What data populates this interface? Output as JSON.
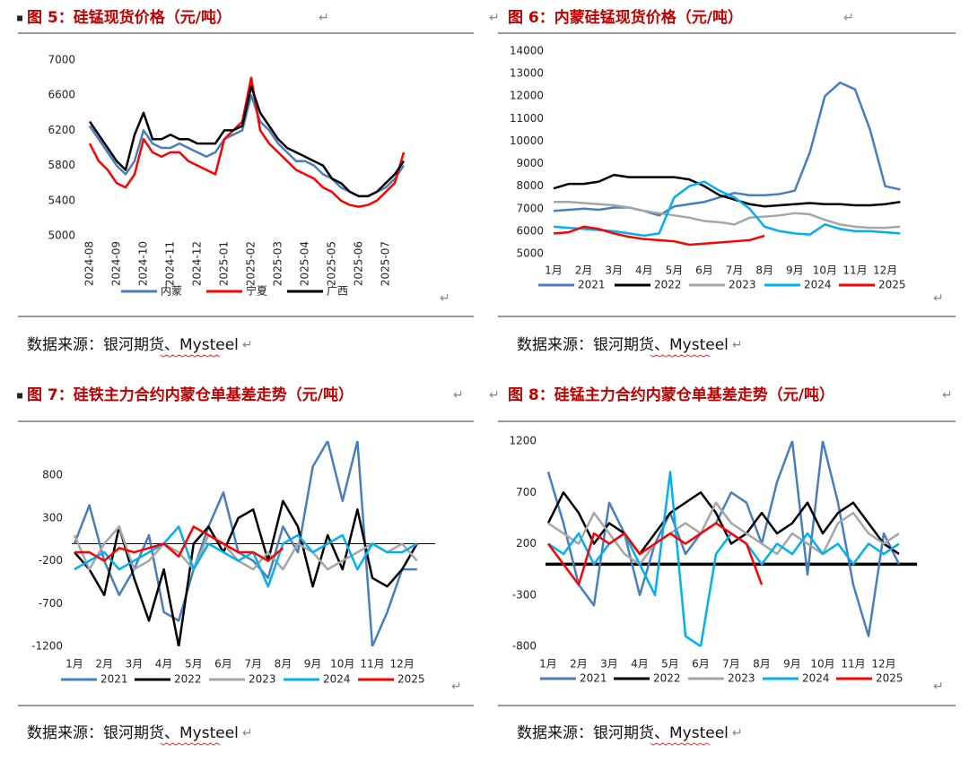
{
  "paragraph_mark": "↵",
  "bullet": "▪",
  "chart_data": [
    {
      "type": "line",
      "title": "图 5：硅锰现货价格（元/吨）",
      "source": "数据来源：银河期货、Mysteel",
      "categories": [
        "2024-08",
        null,
        null,
        "2024-09",
        null,
        null,
        "2024-10",
        null,
        null,
        "2024-11",
        null,
        null,
        "2024-12",
        null,
        null,
        "2025-01",
        null,
        null,
        "2025-02",
        null,
        null,
        "2025-03",
        null,
        null,
        "2025-04",
        null,
        null,
        "2025-05",
        null,
        null,
        "2025-06",
        null,
        null,
        "2025-07",
        null,
        null
      ],
      "ylim": [
        5000,
        7000
      ],
      "yticks": [
        5000,
        5400,
        5800,
        6200,
        6600,
        7000
      ],
      "legend": "bottom",
      "grid": false,
      "series": [
        {
          "name": "内蒙",
          "color": "#4a7ebb",
          "values": [
            6250,
            6100,
            5950,
            5800,
            5700,
            5850,
            6200,
            6050,
            6000,
            6000,
            6050,
            6000,
            5950,
            5900,
            5950,
            6100,
            6150,
            6200,
            6600,
            6300,
            6200,
            6050,
            5950,
            5850,
            5850,
            5800,
            5700,
            5650,
            5550,
            5500,
            5450,
            5450,
            5500,
            5550,
            5650,
            5800
          ]
        },
        {
          "name": "宁夏",
          "color": "#ff0000",
          "values": [
            6050,
            5850,
            5750,
            5600,
            5550,
            5700,
            6100,
            5950,
            5900,
            5950,
            5950,
            5850,
            5800,
            5750,
            5700,
            6100,
            6200,
            6300,
            6800,
            6200,
            6050,
            5950,
            5850,
            5750,
            5700,
            5650,
            5550,
            5500,
            5400,
            5350,
            5330,
            5350,
            5400,
            5500,
            5600,
            5950
          ]
        },
        {
          "name": "广西",
          "color": "#000000",
          "values": [
            6300,
            6150,
            6000,
            5850,
            5750,
            6150,
            6400,
            6100,
            6100,
            6150,
            6100,
            6100,
            6050,
            6050,
            6050,
            6200,
            6200,
            6250,
            6700,
            6400,
            6250,
            6100,
            6000,
            5950,
            5900,
            5850,
            5800,
            5650,
            5600,
            5500,
            5450,
            5450,
            5500,
            5600,
            5700,
            5850
          ]
        }
      ]
    },
    {
      "type": "line",
      "title": "图 6：内蒙硅锰现货价格（元/吨）",
      "source": "数据来源：银河期货、Mysteel",
      "categories": [
        "1月",
        null,
        "2月",
        null,
        "3月",
        null,
        "4月",
        null,
        "5月",
        null,
        "6月",
        null,
        "7月",
        null,
        "8月",
        null,
        "9月",
        null,
        "10月",
        null,
        "11月",
        null,
        "12月",
        null
      ],
      "ylim": [
        5000,
        14000
      ],
      "yticks": [
        5000,
        6000,
        7000,
        8000,
        9000,
        10000,
        11000,
        12000,
        13000,
        14000
      ],
      "legend": "bottom",
      "grid": false,
      "series": [
        {
          "name": "2021",
          "color": "#4a7ebb",
          "values": [
            6900,
            6950,
            7000,
            6950,
            7050,
            7050,
            6900,
            6700,
            7100,
            7200,
            7300,
            7500,
            7700,
            7600,
            7600,
            7650,
            7800,
            9500,
            12000,
            12600,
            12300,
            10500,
            8000,
            7850
          ]
        },
        {
          "name": "2022",
          "color": "#000000",
          "values": [
            7900,
            8100,
            8100,
            8200,
            8500,
            8400,
            8400,
            8400,
            8400,
            8300,
            8000,
            7600,
            7400,
            7200,
            7100,
            7150,
            7200,
            7250,
            7200,
            7200,
            7150,
            7150,
            7200,
            7300
          ]
        },
        {
          "name": "2023",
          "color": "#a6a6a6",
          "values": [
            7300,
            7300,
            7250,
            7200,
            7150,
            7050,
            6900,
            6800,
            6700,
            6600,
            6450,
            6400,
            6300,
            6600,
            6650,
            6700,
            6800,
            6750,
            6500,
            6300,
            6200,
            6150,
            6150,
            6200
          ]
        },
        {
          "name": "2024",
          "color": "#00b0f0",
          "values": [
            6200,
            6150,
            6100,
            6050,
            6000,
            5900,
            5800,
            5900,
            7500,
            8000,
            8200,
            7800,
            7500,
            7000,
            6200,
            6000,
            5900,
            5850,
            6300,
            6100,
            6000,
            6000,
            5950,
            5900
          ]
        },
        {
          "name": "2025",
          "color": "#ff0000",
          "values": [
            5900,
            5950,
            6200,
            6100,
            5900,
            5750,
            5650,
            5600,
            5550,
            5400,
            5450,
            5500,
            5550,
            5600,
            5800,
            null,
            null,
            null,
            null,
            null,
            null,
            null,
            null,
            null
          ]
        }
      ]
    },
    {
      "type": "line",
      "title": "图 7：硅铁主力合约内蒙仓单基差走势（元/吨）",
      "source": "数据来源：银河期货、Mysteel",
      "categories": [
        "1月",
        null,
        "2月",
        null,
        "3月",
        null,
        "4月",
        null,
        "5月",
        null,
        "6月",
        null,
        "7月",
        null,
        "8月",
        null,
        "9月",
        null,
        "10月",
        null,
        "11月",
        null,
        "12月",
        null
      ],
      "ylim": [
        -1200,
        1200
      ],
      "yticks": [
        -1200,
        -700,
        -200,
        300,
        800
      ],
      "legend": "bottom",
      "grid": false,
      "series": [
        {
          "name": "2021",
          "color": "#4a7ebb",
          "values": [
            0,
            450,
            -200,
            -600,
            -300,
            100,
            -800,
            -900,
            -300,
            200,
            600,
            -100,
            -200,
            -400,
            200,
            -100,
            900,
            1200,
            500,
            1200,
            -1200,
            -800,
            -300,
            -300
          ]
        },
        {
          "name": "2022",
          "color": "#000000",
          "values": [
            -100,
            -300,
            -600,
            200,
            -400,
            -900,
            -300,
            -1200,
            0,
            200,
            -100,
            300,
            400,
            -200,
            500,
            200,
            -500,
            100,
            -300,
            400,
            -400,
            -500,
            -300,
            0
          ]
        },
        {
          "name": "2023",
          "color": "#a6a6a6",
          "values": [
            100,
            -300,
            0,
            200,
            -300,
            -200,
            0,
            -100,
            -300,
            100,
            0,
            -200,
            -300,
            -100,
            -300,
            0,
            -100,
            -300,
            -200,
            -100,
            0,
            -100,
            0,
            -200
          ]
        },
        {
          "name": "2024",
          "color": "#00b0f0",
          "values": [
            -300,
            -200,
            -100,
            -300,
            -200,
            -100,
            0,
            200,
            -300,
            0,
            -100,
            -200,
            -100,
            -500,
            0,
            100,
            -100,
            0,
            100,
            -300,
            0,
            -100,
            -100,
            0
          ]
        },
        {
          "name": "2025",
          "color": "#ff0000",
          "values": [
            -100,
            -100,
            -200,
            -50,
            -100,
            -50,
            0,
            -150,
            200,
            100,
            0,
            -100,
            -100,
            -200,
            -50,
            null,
            null,
            null,
            null,
            null,
            null,
            null,
            null,
            null
          ]
        }
      ]
    },
    {
      "type": "line",
      "title": "图 8：硅锰主力合约内蒙仓单基差走势（元/吨）",
      "source": "数据来源：银河期货、Mysteel",
      "categories": [
        "1月",
        null,
        "2月",
        null,
        "3月",
        null,
        "4月",
        null,
        "5月",
        null,
        "6月",
        null,
        "7月",
        null,
        "8月",
        null,
        "9月",
        null,
        "10月",
        null,
        "11月",
        null,
        "12月",
        null
      ],
      "ylim": [
        -800,
        1200
      ],
      "yticks": [
        -800,
        -300,
        200,
        700,
        1200
      ],
      "legend": "bottom",
      "grid": false,
      "series": [
        {
          "name": "2021",
          "color": "#4a7ebb",
          "values": [
            900,
            400,
            -200,
            -400,
            600,
            300,
            -300,
            200,
            500,
            100,
            300,
            400,
            700,
            600,
            200,
            800,
            1200,
            -100,
            1200,
            600,
            -200,
            -700,
            300,
            0
          ]
        },
        {
          "name": "2022",
          "color": "#000000",
          "values": [
            400,
            700,
            500,
            200,
            400,
            300,
            100,
            300,
            500,
            600,
            700,
            500,
            200,
            300,
            500,
            300,
            400,
            600,
            300,
            500,
            600,
            400,
            200,
            100
          ]
        },
        {
          "name": "2023",
          "color": "#a6a6a6",
          "values": [
            400,
            300,
            200,
            500,
            300,
            100,
            0,
            200,
            300,
            400,
            300,
            600,
            400,
            300,
            200,
            100,
            300,
            200,
            100,
            400,
            500,
            300,
            200,
            300
          ]
        },
        {
          "name": "2024",
          "color": "#00b0f0",
          "values": [
            200,
            100,
            300,
            0,
            200,
            300,
            0,
            -300,
            900,
            -700,
            -800,
            100,
            300,
            200,
            0,
            200,
            100,
            300,
            100,
            200,
            0,
            200,
            100,
            200
          ]
        },
        {
          "name": "2025",
          "color": "#ff0000",
          "values": [
            200,
            0,
            -200,
            300,
            200,
            300,
            100,
            200,
            300,
            200,
            300,
            400,
            300,
            200,
            -200,
            null,
            null,
            null,
            null,
            null,
            null,
            null,
            null,
            null
          ]
        }
      ]
    }
  ]
}
